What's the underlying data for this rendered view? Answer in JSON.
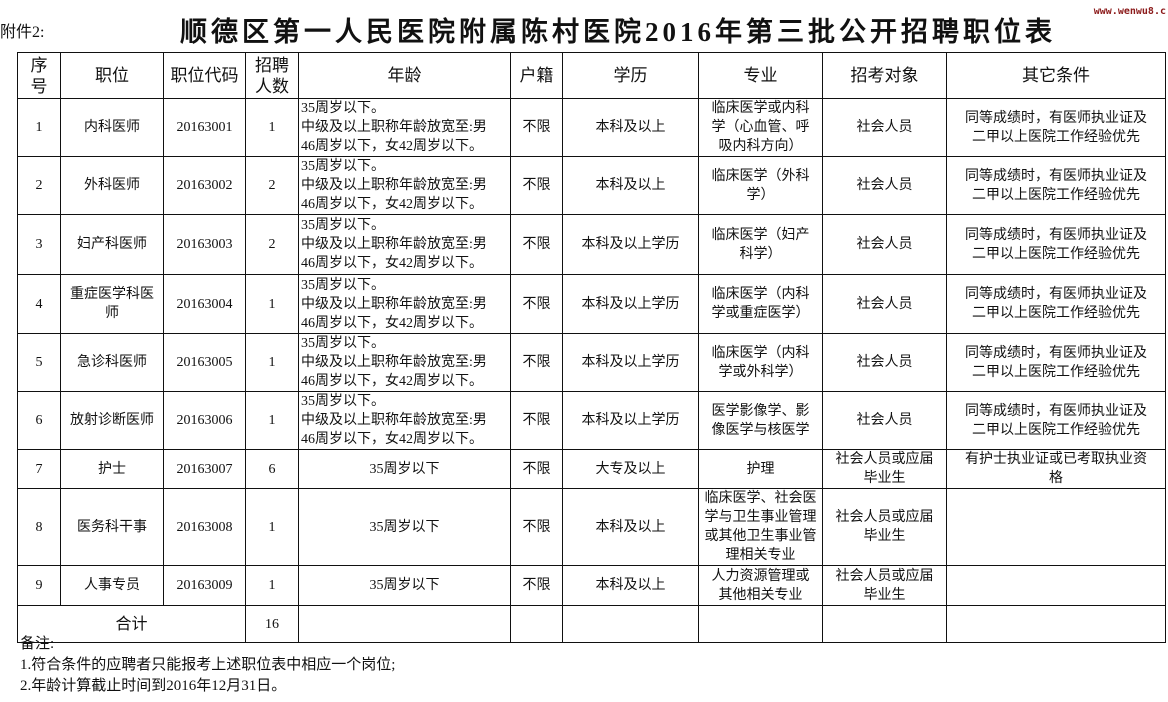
{
  "attachment_label": "附件2:",
  "title": "顺德区第一人民医院附属陈村医院2016年第三批公开招聘职位表",
  "watermark": "www.wenwu8.c",
  "headers": [
    "序\n号",
    "职位",
    "职位代码",
    "招聘\n人数",
    "年龄",
    "户籍",
    "学历",
    "专业",
    "招考对象",
    "其它条件"
  ],
  "rows": [
    {
      "no": "1",
      "position": "内科医师",
      "code": "20163001",
      "count": "1",
      "age": "35周岁以下。\n中级及以上职称年龄放宽至:男\n46周岁以下，女42周岁以下。",
      "hukou": "不限",
      "education": "本科及以上",
      "major": "临床医学或内科\n学（心血管、呼\n吸内科方向）",
      "target": "社会人员",
      "other": "同等成绩时，有医师执业证及\n二甲以上医院工作经验优先"
    },
    {
      "no": "2",
      "position": "外科医师",
      "code": "20163002",
      "count": "2",
      "age": "35周岁以下。\n中级及以上职称年龄放宽至:男\n46周岁以下，女42周岁以下。",
      "hukou": "不限",
      "education": "本科及以上",
      "major": "临床医学（外科\n学）",
      "target": "社会人员",
      "other": "同等成绩时，有医师执业证及\n二甲以上医院工作经验优先"
    },
    {
      "no": "3",
      "position": "妇产科医师",
      "code": "20163003",
      "count": "2",
      "age": "35周岁以下。\n中级及以上职称年龄放宽至:男\n46周岁以下，女42周岁以下。",
      "hukou": "不限",
      "education": "本科及以上学历",
      "major": "临床医学（妇产\n科学）",
      "target": "社会人员",
      "other": "同等成绩时，有医师执业证及\n二甲以上医院工作经验优先"
    },
    {
      "no": "4",
      "position": "重症医学科医\n师",
      "code": "20163004",
      "count": "1",
      "age": "35周岁以下。\n中级及以上职称年龄放宽至:男\n46周岁以下，女42周岁以下。",
      "hukou": "不限",
      "education": "本科及以上学历",
      "major": "临床医学（内科\n学或重症医学）",
      "target": "社会人员",
      "other": "同等成绩时，有医师执业证及\n二甲以上医院工作经验优先"
    },
    {
      "no": "5",
      "position": "急诊科医师",
      "code": "20163005",
      "count": "1",
      "age": "35周岁以下。\n中级及以上职称年龄放宽至:男\n46周岁以下，女42周岁以下。",
      "hukou": "不限",
      "education": "本科及以上学历",
      "major": "临床医学（内科\n学或外科学）",
      "target": "社会人员",
      "other": "同等成绩时，有医师执业证及\n二甲以上医院工作经验优先"
    },
    {
      "no": "6",
      "position": "放射诊断医师",
      "code": "20163006",
      "count": "1",
      "age": "35周岁以下。\n中级及以上职称年龄放宽至:男\n46周岁以下，女42周岁以下。",
      "hukou": "不限",
      "education": "本科及以上学历",
      "major": "医学影像学、影\n像医学与核医学",
      "target": "社会人员",
      "other": "同等成绩时，有医师执业证及\n二甲以上医院工作经验优先"
    },
    {
      "no": "7",
      "position": "护士",
      "code": "20163007",
      "count": "6",
      "age": "35周岁以下",
      "hukou": "不限",
      "education": "大专及以上",
      "major": "护理",
      "target": "社会人员或应届\n毕业生",
      "other": "有护士执业证或已考取执业资\n格"
    },
    {
      "no": "8",
      "position": "医务科干事",
      "code": "20163008",
      "count": "1",
      "age": "35周岁以下",
      "hukou": "不限",
      "education": "本科及以上",
      "major": "临床医学、社会医\n学与卫生事业管理\n或其他卫生事业管\n理相关专业",
      "target": "社会人员或应届\n毕业生",
      "other": ""
    },
    {
      "no": "9",
      "position": "人事专员",
      "code": "20163009",
      "count": "1",
      "age": "35周岁以下",
      "hukou": "不限",
      "education": "本科及以上",
      "major": "人力资源管理或\n其他相关专业",
      "target": "社会人员或应届\n毕业生",
      "other": ""
    }
  ],
  "total": {
    "label": "合计",
    "count": "16"
  },
  "notes": [
    "备注:",
    "1.符合条件的应聘者只能报考上述职位表中相应一个岗位;",
    "2.年龄计算截止时间到2016年12月31日。"
  ]
}
